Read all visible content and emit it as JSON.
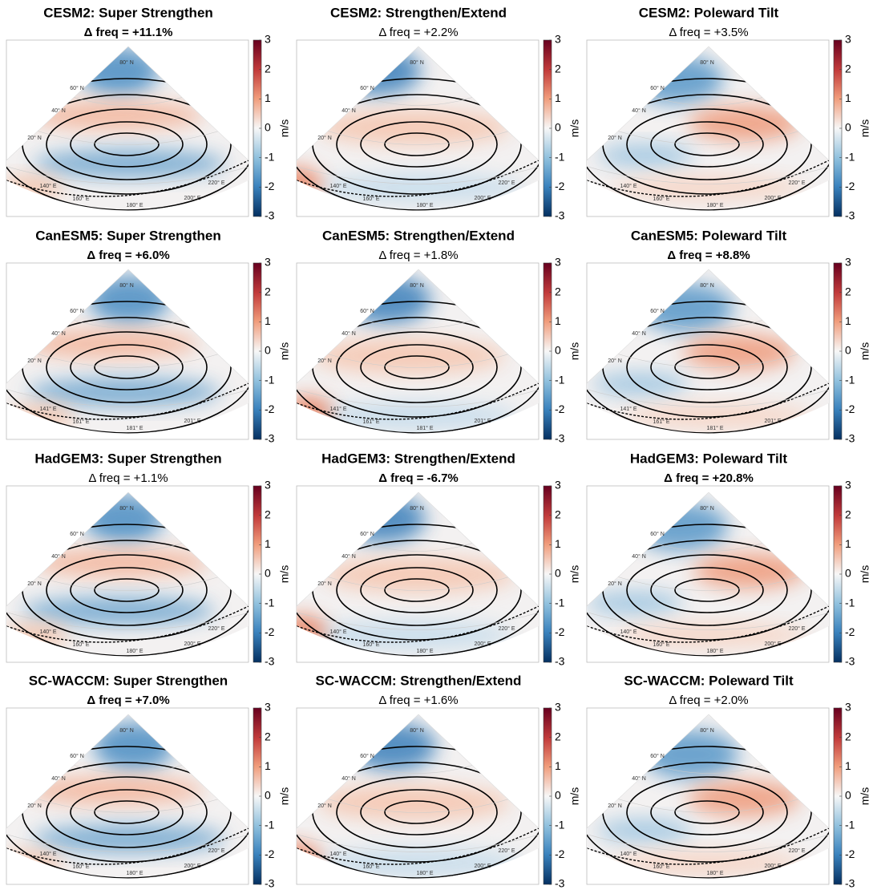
{
  "colorbar": {
    "range": [
      -3,
      3
    ],
    "ticks": [
      3,
      2,
      1,
      0,
      -1,
      -2,
      -3
    ],
    "label": "m/s"
  },
  "lat_labels": [
    "20° N",
    "40° N",
    "60° N",
    "80° N"
  ],
  "rows": [
    {
      "lon_labels": [
        "140° E",
        "160° E",
        "180° E",
        "200° E",
        "220° E"
      ],
      "panels": [
        {
          "title": "CESM2: Super Strengthen",
          "subtitle": "Δ freq = +11.1%",
          "bold": true
        },
        {
          "title": "CESM2: Strengthen/Extend",
          "subtitle": "Δ freq = +2.2%",
          "bold": false
        },
        {
          "title": "CESM2: Poleward Tilt",
          "subtitle": "Δ freq = +3.5%",
          "bold": false
        }
      ]
    },
    {
      "lon_labels": [
        "141° E",
        "161° E",
        "181° E",
        "201° E"
      ],
      "panels": [
        {
          "title": "CanESM5: Super Strengthen",
          "subtitle": "Δ freq = +6.0%",
          "bold": true
        },
        {
          "title": "CanESM5: Strengthen/Extend",
          "subtitle": "Δ freq = +1.8%",
          "bold": false
        },
        {
          "title": "CanESM5: Poleward Tilt",
          "subtitle": "Δ freq = +8.8%",
          "bold": true
        }
      ]
    },
    {
      "lon_labels": [
        "140° E",
        "160° E",
        "180° E",
        "200° E",
        "220° E"
      ],
      "panels": [
        {
          "title": "HadGEM3: Super Strengthen",
          "subtitle": "Δ freq = +1.1%",
          "bold": false
        },
        {
          "title": "HadGEM3: Strengthen/Extend",
          "subtitle": "Δ freq = -6.7%",
          "bold": true
        },
        {
          "title": "HadGEM3: Poleward Tilt",
          "subtitle": "Δ freq = +20.8%",
          "bold": true
        }
      ]
    },
    {
      "lon_labels": [
        "140° E",
        "160° E",
        "180° E",
        "200° E",
        "220° E"
      ],
      "panels": [
        {
          "title": "SC-WACCM: Super Strengthen",
          "subtitle": "Δ freq = +7.0%",
          "bold": true
        },
        {
          "title": "SC-WACCM: Strengthen/Extend",
          "subtitle": "Δ freq = +1.6%",
          "bold": false
        },
        {
          "title": "SC-WACCM: Poleward Tilt",
          "subtitle": "Δ freq = +2.0%",
          "bold": false
        }
      ]
    }
  ]
}
